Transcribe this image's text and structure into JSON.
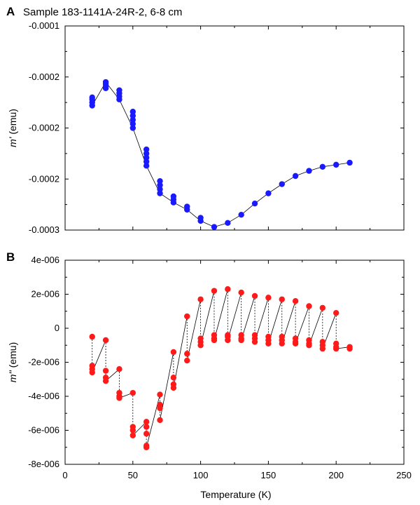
{
  "figure": {
    "title": "Sample 183-1141A-24R-2, 6-8 cm",
    "panel_a_letter": "A",
    "panel_b_letter": "B"
  },
  "chart_data": [
    {
      "type": "scatter",
      "panel": "A",
      "xlabel": "",
      "ylabel": "m' (emu)",
      "xlim": [
        0,
        250
      ],
      "ylim": [
        -0.0003,
        -0.0001
      ],
      "y_tick_labels": [
        "-0.0001",
        "-0.0002",
        "-0.0002",
        "-0.0002",
        "-0.0003"
      ],
      "y_tick_values": [
        -0.0001,
        -0.00015,
        -0.0002,
        -0.00025,
        -0.0003
      ],
      "x_ticks": [
        0,
        50,
        100,
        150,
        200,
        250
      ],
      "marker_color": "#1a1aff",
      "series": [
        {
          "points": [
            [
              20,
              -0.00017
            ],
            [
              20,
              -0.000172
            ],
            [
              20,
              -0.000175
            ],
            [
              20,
              -0.000178
            ],
            [
              30,
              -0.000155
            ],
            [
              30,
              -0.000157
            ],
            [
              30,
              -0.000159
            ],
            [
              30,
              -0.000161
            ],
            [
              40,
              -0.000163
            ],
            [
              40,
              -0.000166
            ],
            [
              40,
              -0.000169
            ],
            [
              40,
              -0.000172
            ],
            [
              50,
              -0.000184
            ],
            [
              50,
              -0.000188
            ],
            [
              50,
              -0.000192
            ],
            [
              50,
              -0.000196
            ],
            [
              50,
              -0.0002
            ],
            [
              60,
              -0.000221
            ],
            [
              60,
              -0.000225
            ],
            [
              60,
              -0.000229
            ],
            [
              60,
              -0.000233
            ],
            [
              60,
              -0.000237
            ],
            [
              70,
              -0.000252
            ],
            [
              70,
              -0.000256
            ],
            [
              70,
              -0.00026
            ],
            [
              70,
              -0.000264
            ],
            [
              80,
              -0.000267
            ],
            [
              80,
              -0.00027
            ],
            [
              80,
              -0.000273
            ],
            [
              90,
              -0.000277
            ],
            [
              90,
              -0.00028
            ],
            [
              100,
              -0.000288
            ],
            [
              100,
              -0.000291
            ],
            [
              110,
              -0.000297
            ],
            [
              120,
              -0.000293
            ],
            [
              130,
              -0.000285
            ],
            [
              140,
              -0.000274
            ],
            [
              150,
              -0.000264
            ],
            [
              160,
              -0.000255
            ],
            [
              170,
              -0.000247
            ],
            [
              180,
              -0.000242
            ],
            [
              190,
              -0.000238
            ],
            [
              200,
              -0.000236
            ],
            [
              210,
              -0.000234
            ]
          ],
          "line": [
            [
              20,
              -0.000178
            ],
            [
              30,
              -0.000155
            ],
            [
              40,
              -0.000172
            ],
            [
              50,
              -0.0002
            ],
            [
              60,
              -0.000237
            ],
            [
              70,
              -0.000264
            ],
            [
              80,
              -0.000273
            ],
            [
              90,
              -0.00028
            ],
            [
              100,
              -0.000291
            ],
            [
              110,
              -0.000297
            ],
            [
              120,
              -0.000293
            ],
            [
              130,
              -0.000285
            ],
            [
              140,
              -0.000274
            ],
            [
              150,
              -0.000264
            ],
            [
              160,
              -0.000255
            ],
            [
              170,
              -0.000247
            ],
            [
              180,
              -0.000242
            ],
            [
              190,
              -0.000238
            ],
            [
              200,
              -0.000236
            ],
            [
              210,
              -0.000234
            ]
          ]
        }
      ]
    },
    {
      "type": "scatter",
      "panel": "B",
      "xlabel": "Temperature (K)",
      "ylabel": "m'' (emu)",
      "xlim": [
        0,
        250
      ],
      "ylim": [
        -8e-06,
        4e-06
      ],
      "y_tick_labels": [
        "4e-006",
        "2e-006",
        "0",
        "-2e-006",
        "-4e-006",
        "-6e-006",
        "-8e-006"
      ],
      "y_tick_values": [
        4e-06,
        2e-06,
        0,
        -2e-06,
        -4e-06,
        -6e-06,
        -8e-06
      ],
      "x_tick_labels": [
        "0",
        "50",
        "100",
        "150",
        "200",
        "250"
      ],
      "x_ticks": [
        0,
        50,
        100,
        150,
        200,
        250
      ],
      "marker_color": "#ff1a1a",
      "series": [
        {
          "groups": [
            {
              "x": 20,
              "values": [
                -5e-07,
                -2.2e-06,
                -2.4e-06,
                -2.6e-06
              ]
            },
            {
              "x": 30,
              "values": [
                -7e-07,
                -2.5e-06,
                -2.9e-06,
                -3.1e-06
              ]
            },
            {
              "x": 40,
              "values": [
                -2.4e-06,
                -3.8e-06,
                -4e-06,
                -4.1e-06
              ]
            },
            {
              "x": 50,
              "values": [
                -3.8e-06,
                -5.8e-06,
                -6e-06,
                -6.3e-06
              ]
            },
            {
              "x": 60,
              "values": [
                -5.5e-06,
                -5.8e-06,
                -6.2e-06,
                -6.9e-06,
                -7e-06
              ]
            },
            {
              "x": 70,
              "values": [
                -3.9e-06,
                -4.5e-06,
                -4.7e-06,
                -5.4e-06
              ]
            },
            {
              "x": 80,
              "values": [
                -1.4e-06,
                -2.9e-06,
                -3.3e-06,
                -3.5e-06
              ]
            },
            {
              "x": 90,
              "values": [
                7e-07,
                -1.5e-06,
                -1.9e-06
              ]
            },
            {
              "x": 100,
              "values": [
                1.7e-06,
                -6e-07,
                -8e-07,
                -1e-06
              ]
            },
            {
              "x": 110,
              "values": [
                2.2e-06,
                -4e-07,
                -6e-07,
                -7e-07
              ]
            },
            {
              "x": 120,
              "values": [
                2.3e-06,
                -4e-07,
                -5e-07,
                -7e-07
              ]
            },
            {
              "x": 130,
              "values": [
                2.1e-06,
                -4e-07,
                -6e-07,
                -7e-07
              ]
            },
            {
              "x": 140,
              "values": [
                1.9e-06,
                -4e-07,
                -6e-07,
                -8e-07
              ]
            },
            {
              "x": 150,
              "values": [
                1.8e-06,
                -5e-07,
                -7e-07,
                -9e-07
              ]
            },
            {
              "x": 160,
              "values": [
                1.7e-06,
                -5e-07,
                -7e-07,
                -9e-07
              ]
            },
            {
              "x": 170,
              "values": [
                1.6e-06,
                -6e-07,
                -8e-07,
                -9e-07
              ]
            },
            {
              "x": 180,
              "values": [
                1.3e-06,
                -7e-07,
                -9e-07,
                -1e-06
              ]
            },
            {
              "x": 190,
              "values": [
                1.2e-06,
                -8e-07,
                -1e-06,
                -1.2e-06
              ]
            },
            {
              "x": 200,
              "values": [
                9e-07,
                -9e-07,
                -1.1e-06,
                -1.2e-06
              ]
            },
            {
              "x": 210,
              "values": [
                -1.1e-06,
                -1.2e-06
              ]
            }
          ]
        }
      ]
    }
  ]
}
